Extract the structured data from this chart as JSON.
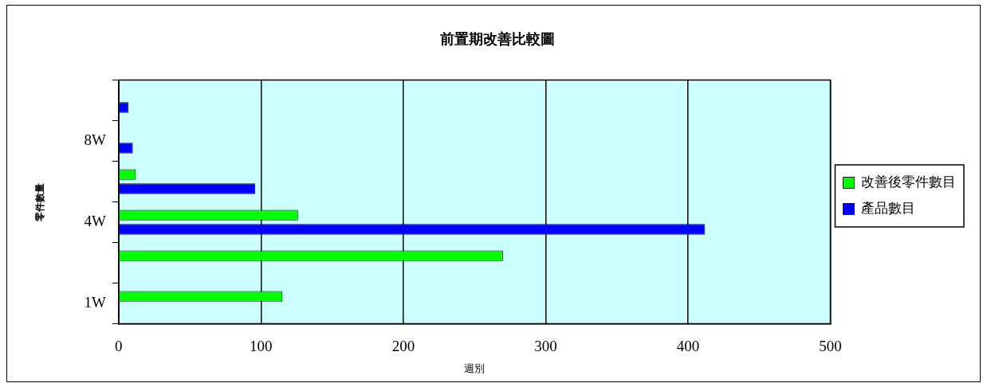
{
  "chart_data": {
    "type": "bar",
    "orientation": "horizontal",
    "title": "前置期改善比較圖",
    "xlabel": "週別",
    "ylabel": "零件數量",
    "categories": [
      null,
      "8W",
      null,
      "4W",
      null,
      "1W"
    ],
    "series": [
      {
        "name": "改善後零件數目",
        "color": "#00ff00",
        "values": [
          null,
          null,
          12,
          126,
          270,
          115
        ]
      },
      {
        "name": "產品數目",
        "color": "#0000ff",
        "values": [
          7,
          10,
          96,
          412,
          null,
          null
        ]
      }
    ],
    "xlim": [
      0,
      500
    ],
    "xticks": [
      0,
      100,
      200,
      300,
      400,
      500
    ],
    "grid": "x",
    "legend": "right"
  }
}
